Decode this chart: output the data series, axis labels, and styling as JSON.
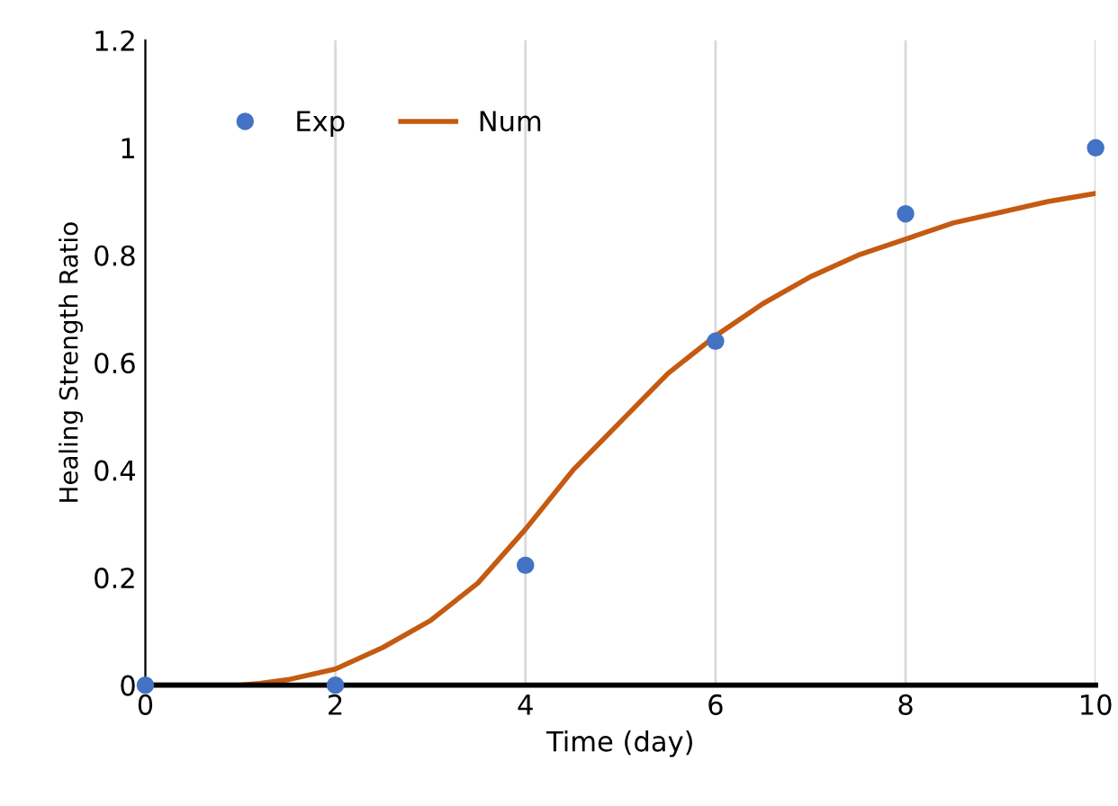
{
  "chart_data": {
    "type": "line",
    "xlabel": "Time (day)",
    "ylabel": "Healing Strength Ratio",
    "xlim": [
      0,
      10
    ],
    "xticks": [
      0,
      2,
      4,
      6,
      8,
      10
    ],
    "ylim": [
      0,
      1.2
    ],
    "yticks": [
      0,
      0.2,
      0.4,
      0.6,
      0.8,
      1,
      1.2
    ],
    "grid": "x",
    "legend": "top left",
    "series": [
      {
        "name": "Exp",
        "type": "scatter",
        "marker": "circle",
        "color": "#4472c4",
        "x": [
          0,
          2,
          4,
          6,
          8,
          10
        ],
        "values": [
          0,
          0,
          0.223,
          0.64,
          0.877,
          1.0
        ]
      },
      {
        "name": "Num",
        "color": "#c55a11",
        "x": [
          0,
          1,
          1.2,
          1.5,
          2,
          2.5,
          3,
          3.5,
          4,
          4.5,
          5,
          5.5,
          6,
          6.5,
          7,
          7.5,
          8,
          8.5,
          9,
          9.5,
          10
        ],
        "values": [
          0,
          0,
          0.003,
          0.01,
          0.03,
          0.07,
          0.12,
          0.19,
          0.29,
          0.4,
          0.49,
          0.58,
          0.65,
          0.71,
          0.76,
          0.8,
          0.83,
          0.86,
          0.88,
          0.9,
          0.915
        ]
      }
    ]
  }
}
